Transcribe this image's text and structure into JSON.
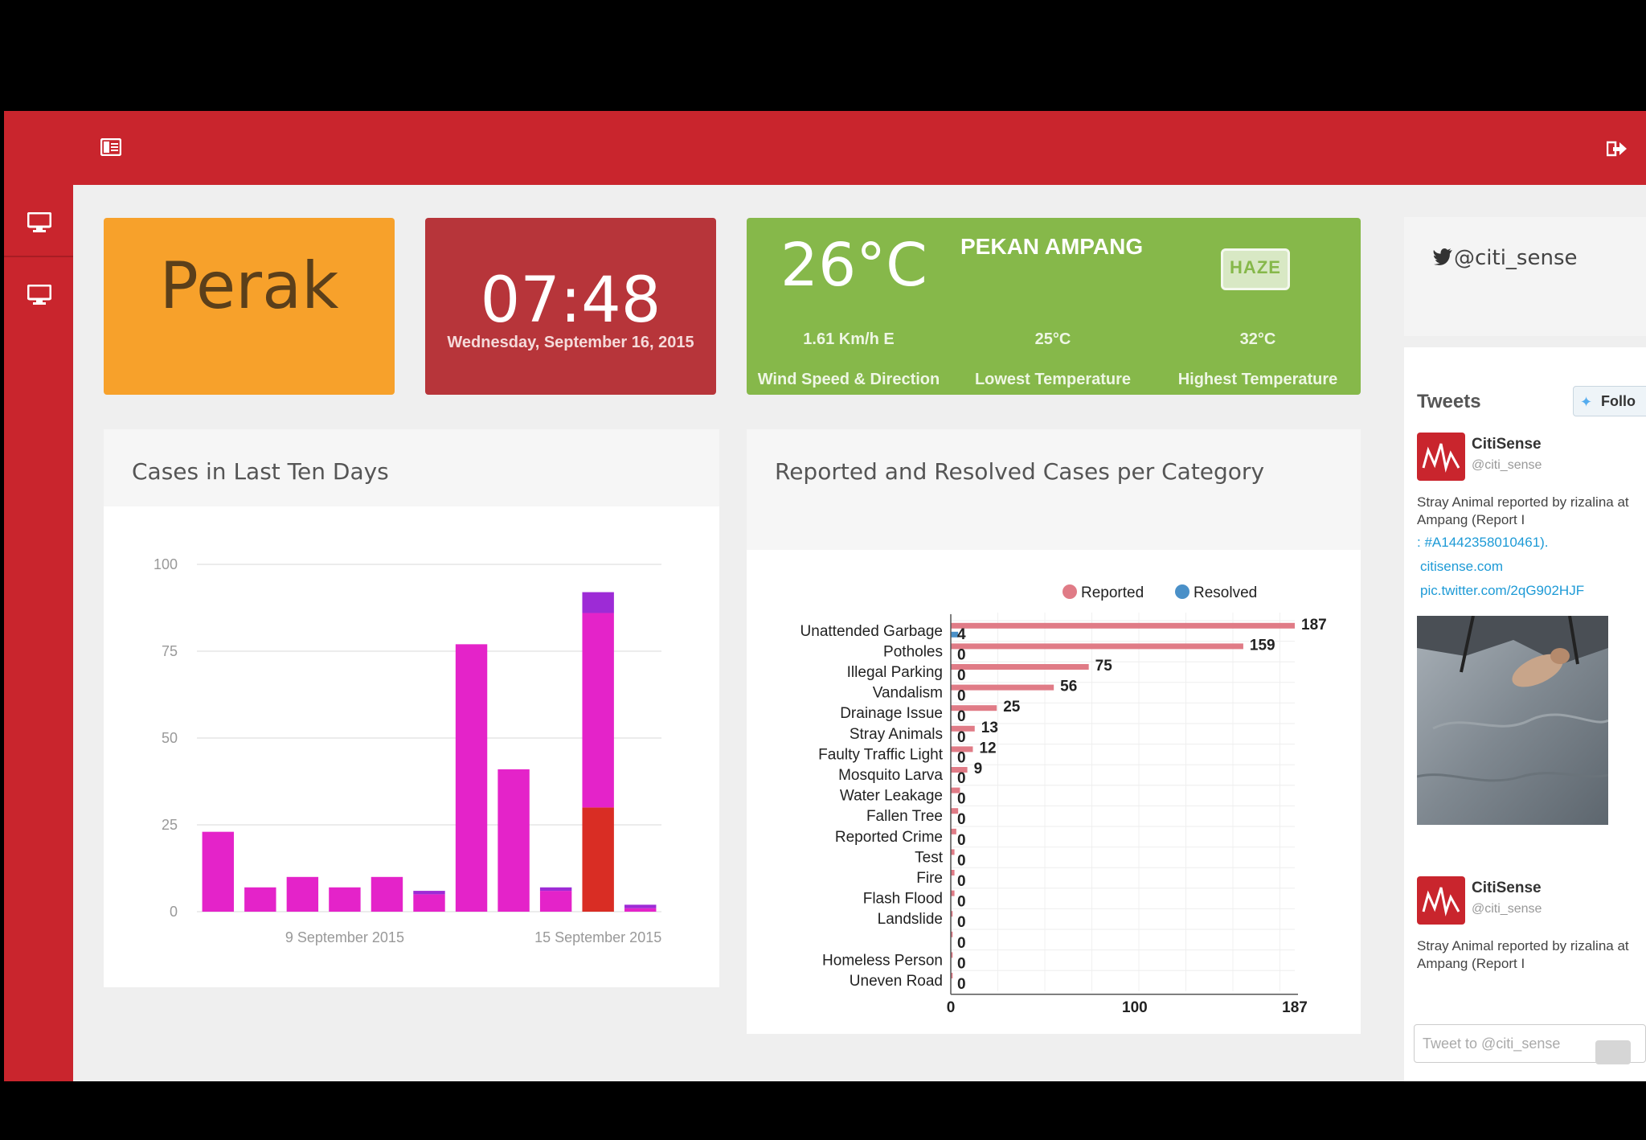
{
  "colors": {
    "brand_red": "#c9252d",
    "orange": "#f7a12b",
    "dark_red": "#b7353a",
    "green": "#86b84a",
    "magenta": "#e423c9",
    "purple": "#9d2bd6",
    "bar_red": "#d92d24",
    "reported": "#e07b86",
    "resolved": "#4a90c8"
  },
  "topbar": {
    "menu_icon": "sidebar-toggle-icon",
    "logout_icon": "logout-icon"
  },
  "sidebar": {
    "items": [
      {
        "icon": "monitor-icon"
      },
      {
        "icon": "monitor-icon"
      }
    ]
  },
  "location_tile": {
    "name": "Perak"
  },
  "clock_tile": {
    "time": "07:48",
    "date": "Wednesday, September 16, 2015"
  },
  "weather_tile": {
    "temperature": "26°C",
    "location": "PEKAN AMPANG",
    "badge": "HAZE",
    "wind_value": "1.61 Km/h E",
    "wind_label": "Wind Speed & Direction",
    "low_value": "25°C",
    "low_label": "Lowest Temperature",
    "high_value": "32°C",
    "high_label": "Highest Temperature"
  },
  "twitter": {
    "handle": "@citi_sense",
    "tweets_label": "Tweets",
    "follow_label": "Follo",
    "tweets": [
      {
        "name": "CitiSense",
        "handle": "@citi_sense",
        "text": "Stray Animal reported by rizalina at Ampang (Report I",
        "hashtag": ": #A1442358010461).",
        "link1": "citisense.com",
        "link2": "pic.twitter.com/2qG902HJF"
      },
      {
        "name": "CitiSense",
        "handle": "@citi_sense",
        "text": "Stray Animal reported by rizalina at Ampang (Report I"
      }
    ],
    "compose_placeholder": "Tweet to @citi_sense"
  },
  "chart_data": [
    {
      "type": "bar",
      "title": "Cases in Last Ten Days",
      "x_tick_labels": [
        "9 September 2015",
        "15 September 2015"
      ],
      "ylim": [
        0,
        100
      ],
      "yticks": [
        0,
        25,
        50,
        75,
        100
      ],
      "grid": true,
      "stacked": true,
      "series": [
        {
          "color": "#d92d24",
          "values": [
            0,
            0,
            0,
            0,
            0,
            0,
            0,
            0,
            0,
            30,
            0
          ]
        },
        {
          "color": "#e423c9",
          "values": [
            23,
            7,
            10,
            7,
            10,
            5,
            77,
            41,
            6,
            56,
            1
          ]
        },
        {
          "color": "#9d2bd6",
          "values": [
            0,
            0,
            0,
            0,
            0,
            1,
            0,
            0,
            1,
            6,
            1
          ]
        }
      ]
    },
    {
      "type": "bar",
      "orientation": "horizontal",
      "title": "Reported and Resolved Cases per Category",
      "categories": [
        "Unattended Garbage",
        "Potholes",
        "Illegal Parking",
        "Vandalism",
        "Drainage Issue",
        "Stray Animals",
        "Faulty Traffic Light",
        "Mosquito Larva",
        "Water Leakage",
        "Fallen Tree",
        "Reported Crime",
        "Test",
        "Fire",
        "Flash Flood",
        "Landslide",
        "",
        "Homeless Person",
        "Uneven Road"
      ],
      "series": [
        {
          "name": "Reported",
          "color": "#e07b86",
          "values": [
            187,
            159,
            75,
            56,
            25,
            13,
            12,
            9,
            5,
            4,
            3,
            2,
            2,
            2,
            1,
            1,
            1,
            1
          ]
        },
        {
          "name": "Resolved",
          "color": "#4a90c8",
          "values": [
            4,
            0,
            0,
            0,
            0,
            0,
            0,
            0,
            0,
            0,
            0,
            0,
            0,
            0,
            0,
            0,
            0,
            0
          ]
        }
      ],
      "xticks": [
        "0",
        "100",
        "187"
      ],
      "xlim": [
        0,
        187
      ],
      "legend": "top-right"
    }
  ]
}
